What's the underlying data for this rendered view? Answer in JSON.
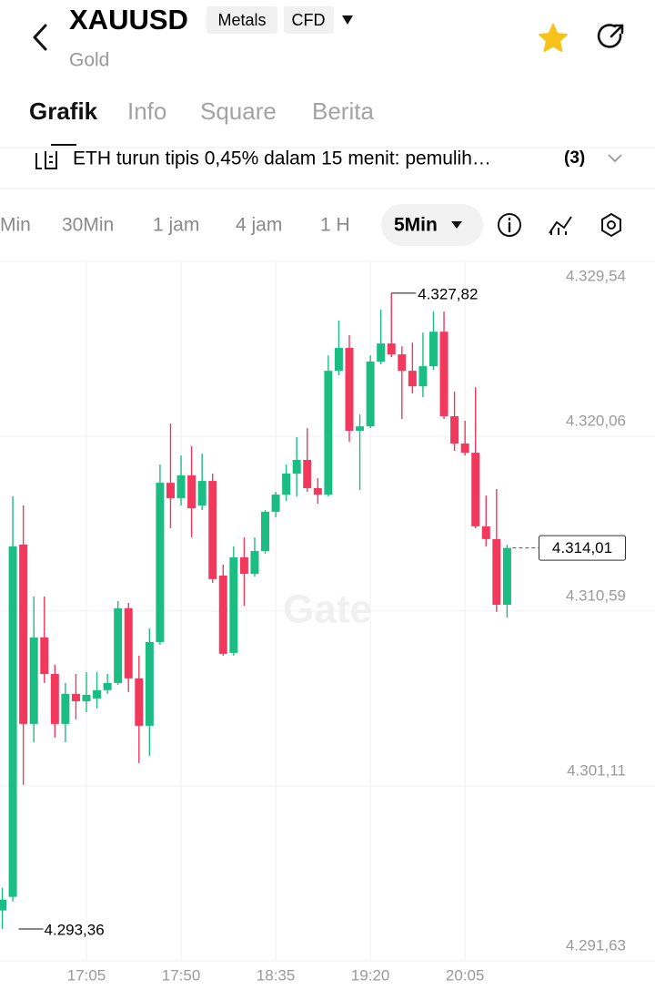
{
  "header": {
    "symbol": "XAUUSD",
    "tags": [
      "Metals",
      "CFD"
    ],
    "name": "Gold"
  },
  "tabs": [
    "Grafik",
    "Info",
    "Square",
    "Berita"
  ],
  "news": {
    "text": "ETH turun tipis 0,45% dalam 15 menit: pemulih…",
    "count": "(3)"
  },
  "intervals": [
    "Min",
    "30Min",
    "1 jam",
    "4 jam",
    "1 H"
  ],
  "selected_interval": "5Min",
  "chart_data": {
    "type": "candlestick",
    "x": [
      null,
      null,
      null,
      null,
      null,
      null,
      null,
      null,
      "17:05",
      null,
      null,
      null,
      null,
      null,
      null,
      null,
      null,
      "17:50",
      null,
      null,
      null,
      null,
      null,
      null,
      null,
      null,
      "18:35",
      null,
      null,
      null,
      null,
      null,
      null,
      null,
      null,
      "19:20",
      null,
      null,
      null,
      null,
      null,
      null,
      null,
      null,
      "20:05",
      null,
      null,
      null,
      null
    ],
    "open": [
      4294.36,
      4295.1,
      4314.19,
      4304.47,
      4309.16,
      4307.18,
      4304.47,
      4306.1,
      4305.7,
      4305.85,
      4306.3,
      4306.69,
      4310.74,
      4306.94,
      4304.37,
      4308.91,
      4317.54,
      4316.71,
      4317.94,
      4316.31,
      4317.64,
      4312.51,
      4308.32,
      4313.5,
      4312.61,
      4313.84,
      4315.97,
      4316.9,
      4318.04,
      4318.78,
      4317.25,
      4316.9,
      4323.61,
      4324.85,
      4320.36,
      4320.6,
      4324.11,
      4325.09,
      4324.5,
      4323.61,
      4322.77,
      4323.86,
      4325.73,
      4321.15,
      4319.67,
      4319.17,
      4315.18,
      4314.49,
      4310.93
    ],
    "high": [
      4295.59,
      4316.8,
      4316.31,
      4311.38,
      4311.38,
      4307.68,
      4306.69,
      4307.18,
      4307.28,
      4307.28,
      4307.18,
      4311.13,
      4311.03,
      4308.17,
      4309.65,
      4318.53,
      4320.75,
      4319.02,
      4319.52,
      4319.12,
      4318.04,
      4313.1,
      4314.09,
      4314.58,
      4314.58,
      4316.06,
      4317.05,
      4318.53,
      4320.01,
      4320.5,
      4317.79,
      4324.45,
      4326.33,
      4325.54,
      4321.24,
      4324.45,
      4326.92,
      4327.82,
      4324.94,
      4325.14,
      4325.68,
      4326.82,
      4326.82,
      4322.48,
      4320.9,
      4322.72,
      4316.85,
      4317.2,
      4314.19
    ],
    "low": [
      4293.36,
      4294.85,
      4301.17,
      4303.48,
      4306.69,
      4303.73,
      4303.48,
      4304.72,
      4305.11,
      4305.31,
      4306.1,
      4306.59,
      4306.2,
      4302.35,
      4302.74,
      4308.76,
      4315.08,
      4316.31,
      4314.58,
      4316.06,
      4312.12,
      4308.17,
      4308.17,
      4310.88,
      4312.46,
      4313.7,
      4315.67,
      4316.56,
      4316.8,
      4317.05,
      4316.41,
      4316.8,
      4323.37,
      4319.76,
      4317.15,
      4320.5,
      4323.96,
      4324.35,
      4321.0,
      4322.38,
      4322.18,
      4323.66,
      4321.0,
      4319.27,
      4319.02,
      4315.08,
      4314.09,
      4310.54,
      4310.24
    ],
    "close": [
      4294.95,
      4314.09,
      4304.47,
      4309.16,
      4307.18,
      4304.47,
      4306.1,
      4305.7,
      4306.05,
      4306.3,
      4306.69,
      4310.74,
      4306.94,
      4304.37,
      4308.91,
      4317.54,
      4316.71,
      4317.94,
      4316.16,
      4317.64,
      4312.32,
      4308.27,
      4313.5,
      4312.61,
      4313.84,
      4315.97,
      4316.9,
      4318.04,
      4318.78,
      4317.25,
      4316.9,
      4323.61,
      4324.85,
      4320.36,
      4320.6,
      4324.11,
      4325.09,
      4324.5,
      4323.61,
      4322.77,
      4323.86,
      4325.73,
      4321.15,
      4319.67,
      4319.17,
      4315.18,
      4314.49,
      4310.93,
      4314.01
    ],
    "up_color": "#1cbd83",
    "down_color": "#f2385c",
    "ylim": [
      4291.63,
      4329.54
    ],
    "yticks": [
      {
        "value": 4291.63,
        "label": "4.291,63"
      },
      {
        "value": 4301.11,
        "label": "4.301,11"
      },
      {
        "value": 4310.59,
        "label": "4.310,59"
      },
      {
        "value": 4320.06,
        "label": "4.320,06"
      },
      {
        "value": 4329.54,
        "label": "4.329,54"
      }
    ],
    "grid": true,
    "watermark": "Gate",
    "high_label": {
      "value": 4327.82,
      "label": "4.327,82"
    },
    "low_label": {
      "value": 4293.36,
      "label": "4.293,36"
    },
    "last_label": {
      "value": 4314.01,
      "label": "4.314,01"
    }
  }
}
